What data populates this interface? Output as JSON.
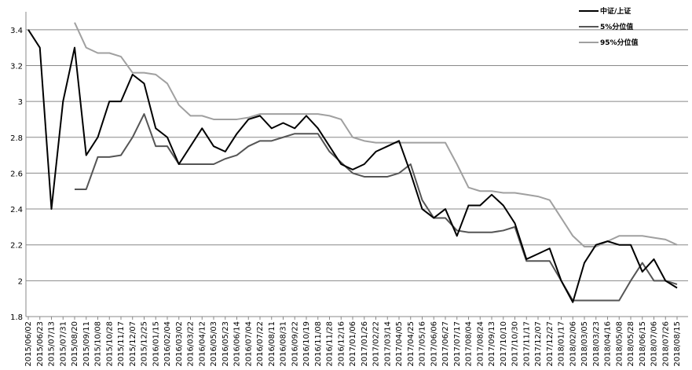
{
  "chart_data": {
    "type": "line",
    "categories": [
      "2015/06/02",
      "2015/06/23",
      "2015/07/13",
      "2015/07/31",
      "2015/08/20",
      "2015/09/11",
      "2015/10/08",
      "2015/10/28",
      "2015/11/17",
      "2015/12/07",
      "2015/12/25",
      "2016/01/15",
      "2016/02/04",
      "2016/03/02",
      "2016/03/22",
      "2016/04/12",
      "2016/05/03",
      "2016/05/23",
      "2016/06/14",
      "2016/07/04",
      "2016/07/22",
      "2016/08/11",
      "2016/08/31",
      "2016/09/22",
      "2016/10/19",
      "2016/11/08",
      "2016/11/28",
      "2016/12/16",
      "2017/01/06",
      "2017/01/26",
      "2017/02/22",
      "2017/03/14",
      "2017/04/05",
      "2017/04/25",
      "2017/05/16",
      "2017/06/06",
      "2017/06/27",
      "2017/07/17",
      "2017/08/04",
      "2017/08/24",
      "2017/09/13",
      "2017/10/10",
      "2017/10/30",
      "2017/11/17",
      "2017/12/07",
      "2017/12/27",
      "2018/01/17",
      "2018/02/06",
      "2018/03/05",
      "2018/03/23",
      "2018/04/16",
      "2018/05/08",
      "2018/05/28",
      "2018/06/15",
      "2018/07/06",
      "2018/07/26",
      "2018/08/15"
    ],
    "series": [
      {
        "name": "中证/上证",
        "color": "#000000",
        "values": [
          3.4,
          3.3,
          2.4,
          3.0,
          3.3,
          2.7,
          2.8,
          3.0,
          3.0,
          3.15,
          3.1,
          2.85,
          2.8,
          2.65,
          2.75,
          2.85,
          2.75,
          2.72,
          2.82,
          2.9,
          2.92,
          2.85,
          2.88,
          2.85,
          2.92,
          2.85,
          2.75,
          2.65,
          2.62,
          2.65,
          2.72,
          2.75,
          2.78,
          2.6,
          2.4,
          2.35,
          2.4,
          2.25,
          2.42,
          2.42,
          2.48,
          2.42,
          2.32,
          2.12,
          2.15,
          2.18,
          2.0,
          1.88,
          2.1,
          2.2,
          2.22,
          2.2,
          2.2,
          2.05,
          2.12,
          2.0,
          1.96
        ]
      },
      {
        "name": "5%分位值",
        "color": "#555555",
        "values": [
          null,
          null,
          null,
          null,
          2.51,
          2.51,
          2.69,
          2.69,
          2.7,
          2.8,
          2.93,
          2.75,
          2.75,
          2.65,
          2.65,
          2.65,
          2.65,
          2.68,
          2.7,
          2.75,
          2.78,
          2.78,
          2.8,
          2.82,
          2.82,
          2.82,
          2.72,
          2.66,
          2.6,
          2.58,
          2.58,
          2.58,
          2.6,
          2.65,
          2.45,
          2.35,
          2.35,
          2.28,
          2.27,
          2.27,
          2.27,
          2.28,
          2.3,
          2.11,
          2.11,
          2.11,
          2.0,
          1.89,
          1.89,
          1.89,
          1.89,
          1.89,
          2.0,
          2.1,
          2.0,
          2.0,
          1.98
        ]
      },
      {
        "name": "95%分位值",
        "color": "#a0a0a0",
        "values": [
          null,
          null,
          null,
          null,
          3.44,
          3.3,
          3.27,
          3.27,
          3.25,
          3.16,
          3.16,
          3.15,
          3.1,
          2.98,
          2.92,
          2.92,
          2.9,
          2.9,
          2.9,
          2.91,
          2.93,
          2.93,
          2.93,
          2.93,
          2.93,
          2.93,
          2.92,
          2.9,
          2.8,
          2.78,
          2.77,
          2.77,
          2.77,
          2.77,
          2.77,
          2.77,
          2.77,
          2.65,
          2.52,
          2.5,
          2.5,
          2.49,
          2.49,
          2.48,
          2.47,
          2.45,
          2.35,
          2.25,
          2.19,
          2.19,
          2.22,
          2.25,
          2.25,
          2.25,
          2.24,
          2.23,
          2.2
        ]
      }
    ],
    "ylim": [
      1.8,
      3.5
    ],
    "yticks": [
      1.8,
      2,
      2.2,
      2.4,
      2.6,
      2.8,
      3,
      3.2,
      3.4
    ],
    "grid": true
  }
}
